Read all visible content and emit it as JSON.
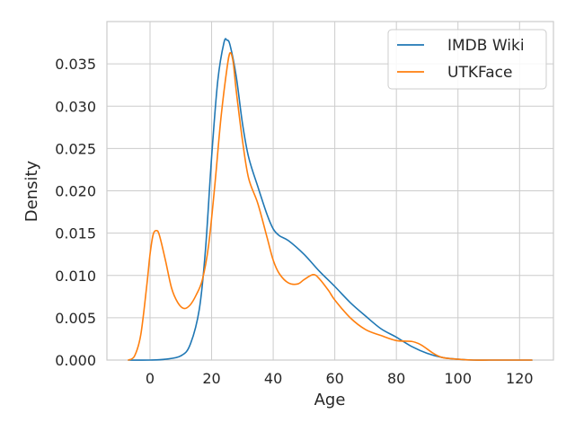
{
  "chart_data": {
    "type": "line",
    "title": "",
    "xlabel": "Age",
    "ylabel": "Density",
    "xlim": [
      -14,
      131
    ],
    "ylim": [
      0,
      0.04
    ],
    "xticks": [
      0,
      20,
      40,
      60,
      80,
      100,
      120
    ],
    "yticks": [
      0.0,
      0.005,
      0.01,
      0.015,
      0.02,
      0.025,
      0.03,
      0.035
    ],
    "ytick_labels": [
      "0.000",
      "0.005",
      "0.010",
      "0.015",
      "0.020",
      "0.025",
      "0.030",
      "0.035"
    ],
    "grid": true,
    "legend_position": "top-right",
    "series": [
      {
        "name": "IMDB Wiki",
        "color": "#1f77b4",
        "x": [
          -7,
          0,
          5,
          10,
          13,
          16,
          18,
          20,
          22,
          24,
          25,
          26,
          28,
          30,
          32,
          35,
          38,
          40,
          42,
          45,
          50,
          55,
          60,
          65,
          70,
          75,
          80,
          85,
          90,
          95,
          100,
          105,
          110,
          115,
          124
        ],
        "y": [
          0.0,
          0.0,
          0.0001,
          0.0005,
          0.0018,
          0.006,
          0.013,
          0.024,
          0.033,
          0.0375,
          0.0378,
          0.0372,
          0.0335,
          0.028,
          0.024,
          0.0205,
          0.0172,
          0.0155,
          0.0147,
          0.0141,
          0.0125,
          0.0105,
          0.0087,
          0.0068,
          0.0052,
          0.0037,
          0.0027,
          0.0016,
          0.0008,
          0.0003,
          0.0001,
          0.0,
          0.0,
          0.0,
          0.0
        ]
      },
      {
        "name": "UTKFace",
        "color": "#ff7f0e",
        "x": [
          -7,
          -5,
          -3,
          -1,
          0,
          1,
          2,
          3,
          5,
          7,
          9,
          11,
          13,
          15,
          17,
          19,
          21,
          23,
          25,
          26,
          27,
          28,
          30,
          32,
          35,
          38,
          40,
          42,
          45,
          48,
          50,
          53,
          55,
          58,
          60,
          65,
          70,
          75,
          80,
          85,
          88,
          92,
          95,
          100,
          105,
          110,
          115,
          124
        ],
        "y": [
          0.0,
          0.0005,
          0.003,
          0.009,
          0.0125,
          0.0148,
          0.0153,
          0.0148,
          0.0118,
          0.0085,
          0.0068,
          0.0061,
          0.0065,
          0.0077,
          0.0095,
          0.0135,
          0.0205,
          0.0285,
          0.0345,
          0.0363,
          0.0352,
          0.0318,
          0.026,
          0.0215,
          0.0185,
          0.0145,
          0.0118,
          0.0102,
          0.0091,
          0.009,
          0.0095,
          0.0101,
          0.0096,
          0.0082,
          0.0071,
          0.005,
          0.0036,
          0.0029,
          0.0023,
          0.0022,
          0.0018,
          0.0008,
          0.0003,
          0.0001,
          0.0,
          0.0,
          0.0,
          0.0
        ]
      }
    ]
  }
}
